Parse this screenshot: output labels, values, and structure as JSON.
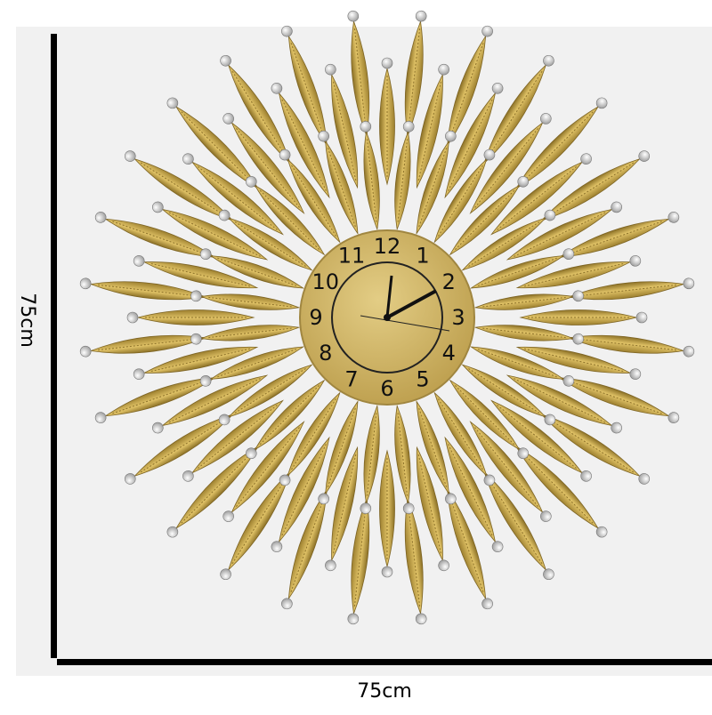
{
  "dimensions": {
    "height": "75cm",
    "width": "75cm"
  },
  "clock": {
    "numerals": [
      "12",
      "1",
      "2",
      "3",
      "4",
      "5",
      "6",
      "7",
      "8",
      "9",
      "10",
      "11"
    ]
  }
}
